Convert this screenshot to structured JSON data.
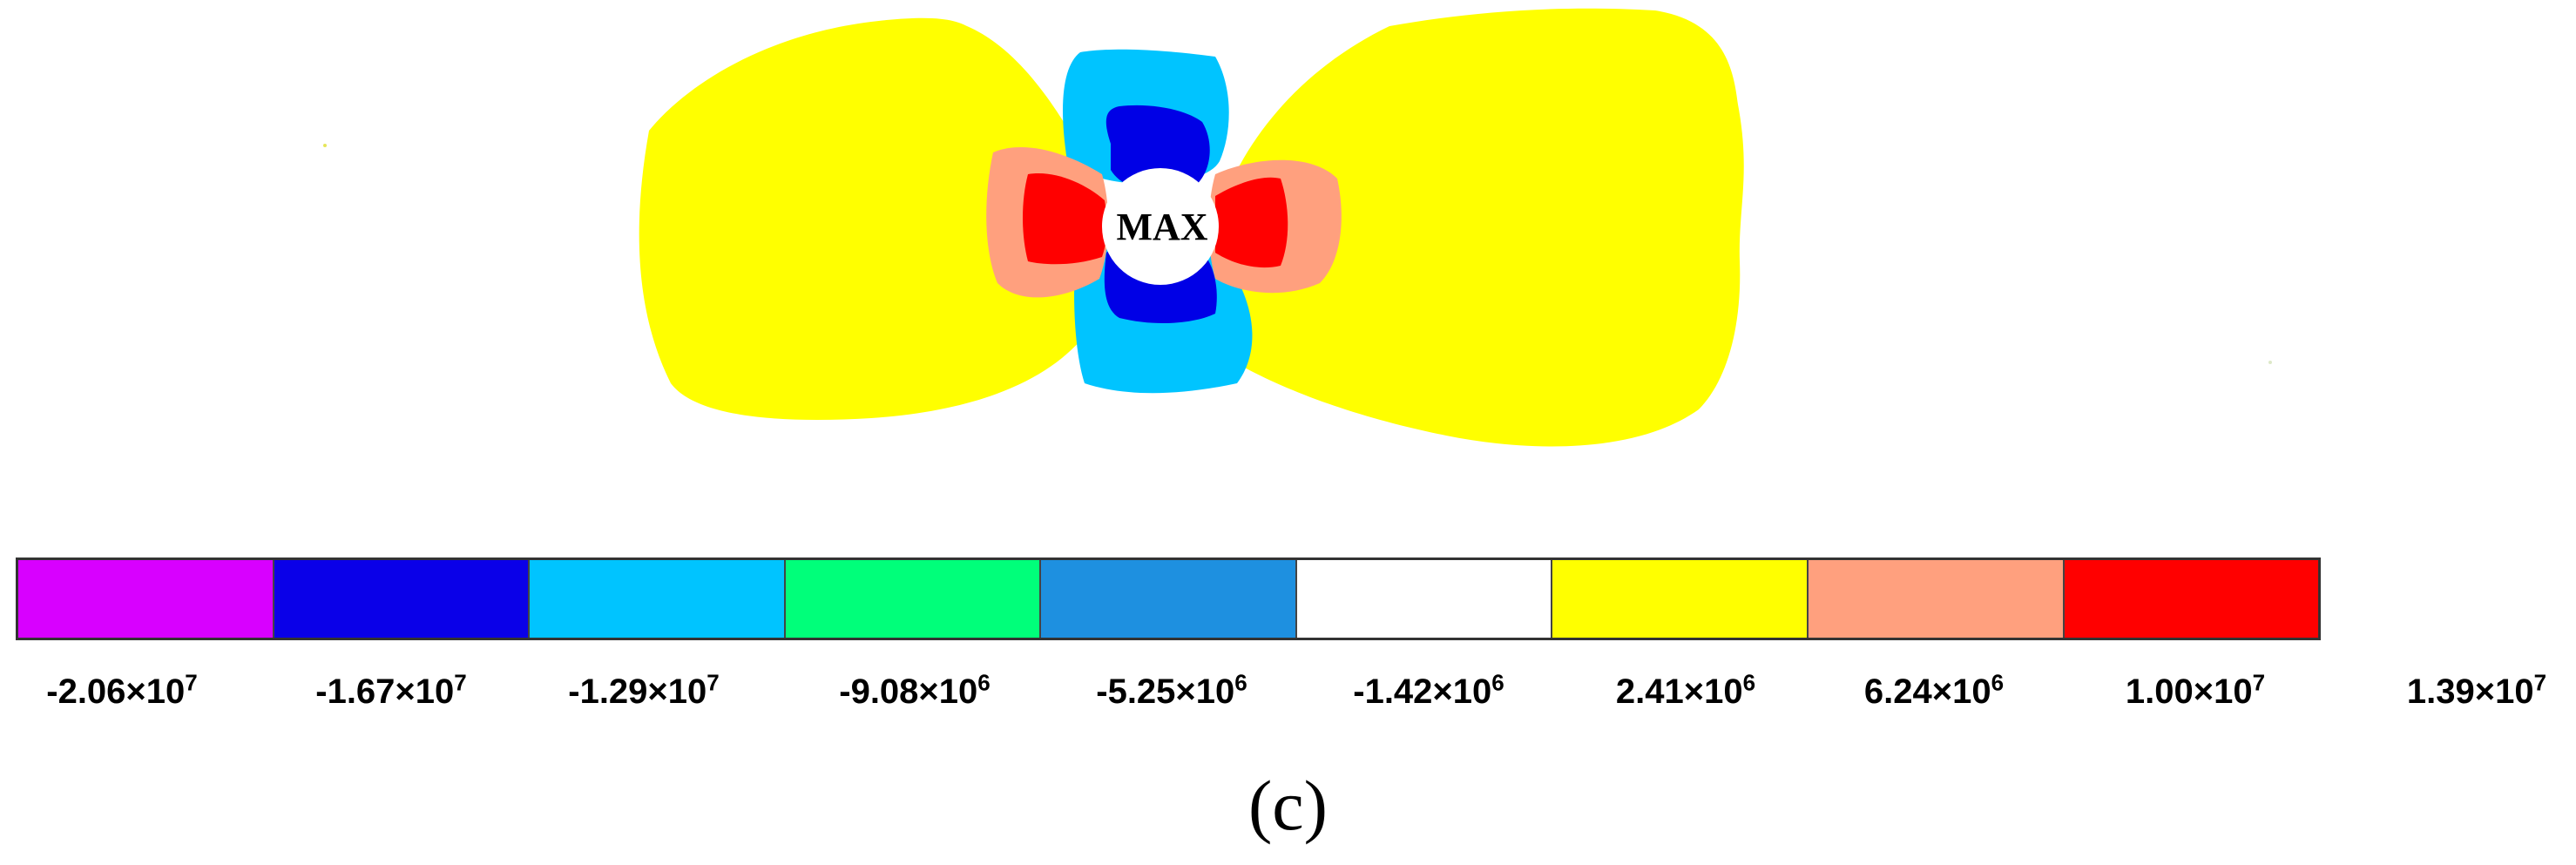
{
  "diagram": {
    "center_label": "MAX",
    "caption": "(c)",
    "colors": {
      "yellow": "#ffff00",
      "light_blue": "#00c4ff",
      "blue": "#0000e6",
      "salmon": "#ff9f80",
      "red": "#ff0000",
      "hole": "#ffffff"
    }
  },
  "legend": {
    "segments": [
      {
        "color": "#d800ff"
      },
      {
        "color": "#0a00e8"
      },
      {
        "color": "#00c4ff"
      },
      {
        "color": "#00ff7a"
      },
      {
        "color": "#1e90e0"
      },
      {
        "color": "#ffffff"
      },
      {
        "color": "#ffff00"
      },
      {
        "color": "#ffa07e"
      },
      {
        "color": "#ff0000"
      }
    ],
    "ticks": [
      {
        "mantissa": "-2.06×10",
        "exp": "7"
      },
      {
        "mantissa": "-1.67×10",
        "exp": "7"
      },
      {
        "mantissa": "-1.29×10",
        "exp": "7"
      },
      {
        "mantissa": "-9.08×10",
        "exp": "6"
      },
      {
        "mantissa": "-5.25×10",
        "exp": "6"
      },
      {
        "mantissa": "-1.42×10",
        "exp": "6"
      },
      {
        "mantissa": "2.41×10",
        "exp": "6"
      },
      {
        "mantissa": "6.24×10",
        "exp": "6"
      },
      {
        "mantissa": "1.00×10",
        "exp": "7"
      },
      {
        "mantissa": "1.39×10",
        "exp": "7"
      }
    ]
  }
}
